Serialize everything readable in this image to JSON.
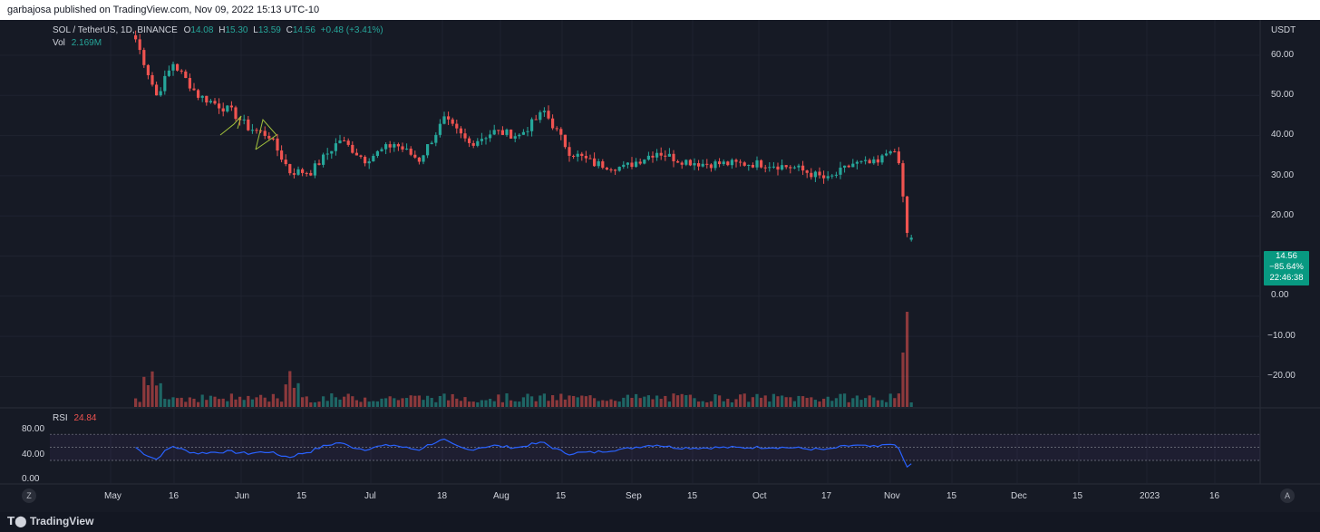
{
  "header": {
    "publish_text": "garbajosa published on TradingView.com, Nov 09, 2022 15:13 UTC-10"
  },
  "legend": {
    "symbol": "SOL / TetherUS, 1D, BINANCE",
    "o_label": "O",
    "o_value": "14.08",
    "h_label": "H",
    "h_value": "15.30",
    "l_label": "L",
    "l_value": "13.59",
    "c_label": "C",
    "c_value": "14.56",
    "change": "+0.48 (+3.41%)",
    "vol_label": "Vol",
    "vol_value": "2.169M",
    "rsi_label": "RSI",
    "rsi_value": "24.84"
  },
  "price_axis": {
    "unit": "USDT",
    "ticks": [
      "60.00",
      "50.00",
      "40.00",
      "30.00",
      "20.00",
      "0.00",
      "−10.00",
      "−20.00"
    ]
  },
  "rsi_axis": {
    "ticks": [
      "80.00",
      "40.00",
      "0.00"
    ]
  },
  "badge": {
    "price": "14.56",
    "pct": "−85.64%",
    "countdown": "22:46:38"
  },
  "time_axis": {
    "ticks": [
      "May",
      "16",
      "Jun",
      "15",
      "Jul",
      "18",
      "Aug",
      "15",
      "Sep",
      "15",
      "Oct",
      "17",
      "Nov",
      "15",
      "Dec",
      "15",
      "2023",
      "16"
    ]
  },
  "corner": {
    "left": "Z",
    "right": "A"
  },
  "footer": {
    "brand": "TradingView"
  },
  "colors": {
    "up": "#26a69a",
    "down": "#ef5350",
    "rsi_line": "#2962ff",
    "badge": "#089981",
    "background": "#161a25"
  },
  "chart_data": {
    "type": "candlestick",
    "symbol": "SOL / TetherUS",
    "interval": "1D",
    "exchange": "BINANCE",
    "y_unit": "USDT",
    "last_candle": {
      "open": 14.08,
      "high": 15.3,
      "low": 13.59,
      "close": 14.56
    },
    "series": [
      {
        "date": "2022-05-07",
        "close": 64.0
      },
      {
        "date": "2022-05-12",
        "close": 50.0
      },
      {
        "date": "2022-05-16",
        "close": 58.0
      },
      {
        "date": "2022-05-22",
        "close": 50.0
      },
      {
        "date": "2022-05-30",
        "close": 46.0
      },
      {
        "date": "2022-06-03",
        "close": 42.0
      },
      {
        "date": "2022-06-08",
        "close": 40.0
      },
      {
        "date": "2022-06-13",
        "close": 31.0
      },
      {
        "date": "2022-06-18",
        "close": 31.0
      },
      {
        "date": "2022-06-25",
        "close": 39.0
      },
      {
        "date": "2022-07-01",
        "close": 34.0
      },
      {
        "date": "2022-07-08",
        "close": 38.0
      },
      {
        "date": "2022-07-14",
        "close": 34.0
      },
      {
        "date": "2022-07-20",
        "close": 44.0
      },
      {
        "date": "2022-07-26",
        "close": 38.0
      },
      {
        "date": "2022-08-01",
        "close": 41.0
      },
      {
        "date": "2022-08-07",
        "close": 40.0
      },
      {
        "date": "2022-08-13",
        "close": 46.0
      },
      {
        "date": "2022-08-19",
        "close": 36.0
      },
      {
        "date": "2022-08-25",
        "close": 33.0
      },
      {
        "date": "2022-09-01",
        "close": 32.0
      },
      {
        "date": "2022-09-09",
        "close": 36.0
      },
      {
        "date": "2022-09-14",
        "close": 34.0
      },
      {
        "date": "2022-09-20",
        "close": 33.0
      },
      {
        "date": "2022-09-28",
        "close": 33.0
      },
      {
        "date": "2022-10-05",
        "close": 33.0
      },
      {
        "date": "2022-10-12",
        "close": 32.0
      },
      {
        "date": "2022-10-20",
        "close": 29.0
      },
      {
        "date": "2022-10-26",
        "close": 33.0
      },
      {
        "date": "2022-11-01",
        "close": 33.0
      },
      {
        "date": "2022-11-04",
        "close": 37.0
      },
      {
        "date": "2022-11-06",
        "close": 33.0
      },
      {
        "date": "2022-11-08",
        "close": 16.0
      },
      {
        "date": "2022-11-09",
        "close": 14.56
      }
    ],
    "rsi": {
      "last": 24.84,
      "levels": [
        70,
        50,
        30
      ]
    },
    "volume_last": "2.169M"
  }
}
